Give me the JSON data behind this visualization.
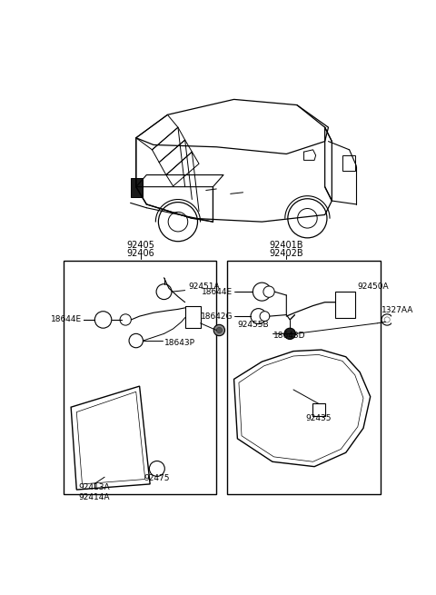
{
  "bg_color": "#ffffff",
  "line_color": "#000000",
  "left_box_labels_top": [
    "92405",
    "92406"
  ],
  "right_box_labels_top": [
    "92401B",
    "92402B"
  ],
  "left_parts": [
    "18644E",
    "92451A",
    "18643P",
    "92413A\n92414A",
    "92475"
  ],
  "right_parts": [
    "92450A",
    "18644E",
    "18642G",
    "18643D",
    "92435",
    "1327AA"
  ],
  "outside_label": "92455B"
}
